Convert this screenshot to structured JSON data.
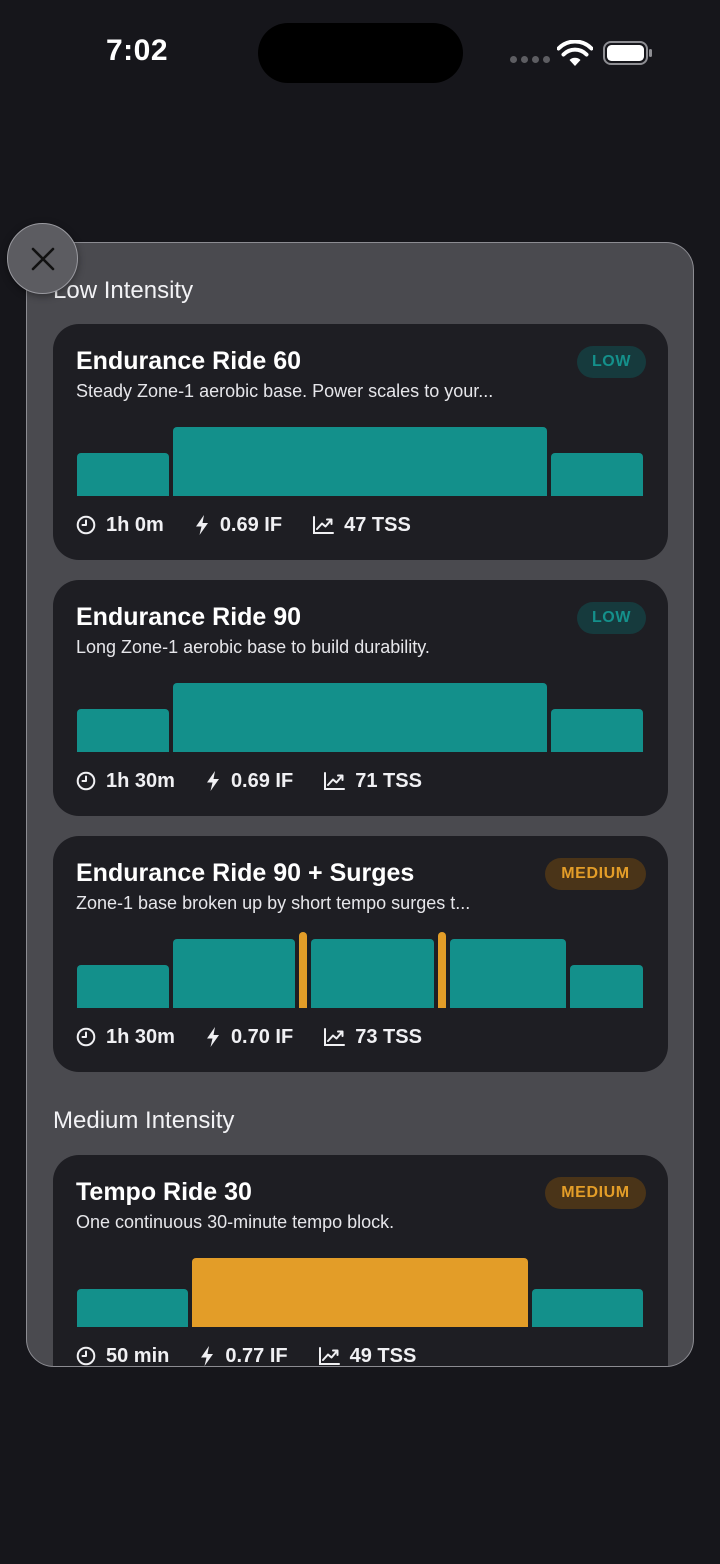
{
  "status_bar": {
    "time": "7:02"
  },
  "sections": [
    {
      "title": "Low Intensity"
    },
    {
      "title": "Medium Intensity"
    }
  ],
  "workouts": [
    {
      "title": "Endurance Ride 60",
      "description": "Steady Zone-1 aerobic base. Power scales to your...",
      "badge": "LOW",
      "duration": "1h 0m",
      "intensity_factor": "0.69 IF",
      "tss": "47 TSS",
      "profile": [
        {
          "zone": "low",
          "level": 0.62
        },
        {
          "zone": "low",
          "level": 1.0
        },
        {
          "zone": "low",
          "level": 0.62
        }
      ]
    },
    {
      "title": "Endurance Ride 90",
      "description": "Long Zone-1 aerobic base to build durability.",
      "badge": "LOW",
      "duration": "1h 30m",
      "intensity_factor": "0.69 IF",
      "tss": "71 TSS",
      "profile": [
        {
          "zone": "low",
          "level": 0.62
        },
        {
          "zone": "low",
          "level": 1.0
        },
        {
          "zone": "low",
          "level": 0.62
        }
      ]
    },
    {
      "title": "Endurance Ride 90 + Surges",
      "description": "Zone-1 base broken up by short tempo surges t...",
      "badge": "MEDIUM",
      "duration": "1h 30m",
      "intensity_factor": "0.70 IF",
      "tss": "73 TSS",
      "profile": [
        {
          "zone": "low",
          "level": 0.62
        },
        {
          "zone": "low",
          "level": 1.0
        },
        {
          "zone": "tempo",
          "level": 1.1
        },
        {
          "zone": "low",
          "level": 1.0
        },
        {
          "zone": "tempo",
          "level": 1.1
        },
        {
          "zone": "low",
          "level": 1.0
        },
        {
          "zone": "low",
          "level": 0.62
        }
      ]
    },
    {
      "title": "Tempo Ride 30",
      "description": "One continuous 30-minute tempo block.",
      "badge": "MEDIUM",
      "duration": "50 min",
      "intensity_factor": "0.77 IF",
      "tss": "49 TSS",
      "profile": [
        {
          "zone": "low",
          "level": 0.55
        },
        {
          "zone": "tempo",
          "level": 1.0
        },
        {
          "zone": "low",
          "level": 0.55
        }
      ]
    }
  ],
  "colors": {
    "low_zone": "#13908b",
    "tempo_zone": "#e39d28"
  },
  "icons": {
    "close": "close-icon",
    "duration": "clock-icon",
    "if": "bolt-icon",
    "tss": "trend-chart-icon"
  }
}
